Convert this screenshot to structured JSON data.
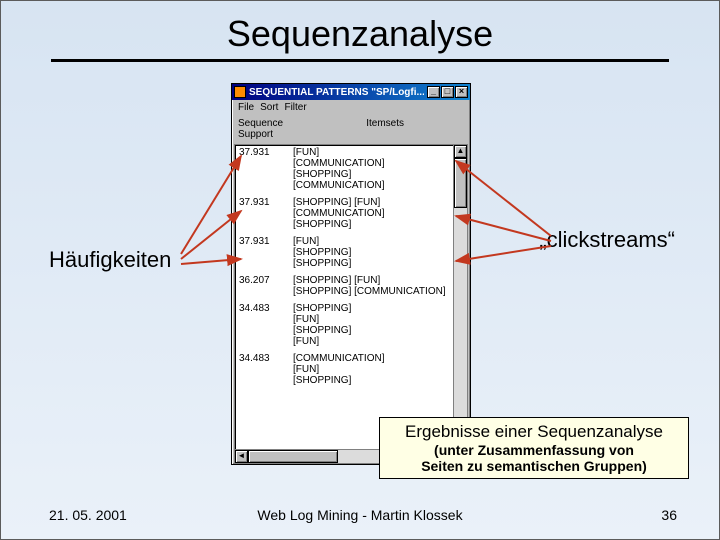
{
  "slide": {
    "title": "Sequenzanalyse",
    "annot_left": "Häufigkeiten",
    "annot_right": "„clickstreams“",
    "callout_line1": "Ergebnisse einer Sequenzanalyse",
    "callout_line2": "(unter Zusammenfassung von",
    "callout_line3": "Seiten zu semantischen Gruppen)",
    "footer_date": "21. 05. 2001",
    "footer_mid": "Web Log Mining - Martin Klossek",
    "footer_num": "36",
    "arrow_color": "#c3381f"
  },
  "app": {
    "title": "SEQUENTIAL PATTERNS        \"SP/Logfi...",
    "menu": [
      "File",
      "Sort",
      "Filter"
    ],
    "hdr_left_label": "Sequence",
    "hdr_left_sub": "Support",
    "hdr_right": "Itemsets",
    "rows": [
      {
        "freq": "37.931",
        "sets": [
          "[FUN]",
          "[COMMUNICATION]",
          "[SHOPPING]",
          "[COMMUNICATION]"
        ]
      },
      {
        "freq": "37.931",
        "sets": [
          "[SHOPPING] [FUN]",
          "[COMMUNICATION]",
          "[SHOPPING]"
        ]
      },
      {
        "freq": "37.931",
        "sets": [
          "[FUN]",
          "[SHOPPING]",
          "[SHOPPING]"
        ]
      },
      {
        "freq": "36.207",
        "sets": [
          "[SHOPPING] [FUN]",
          "[SHOPPING] [COMMUNICATION]"
        ]
      },
      {
        "freq": "34.483",
        "sets": [
          "[SHOPPING]",
          "[FUN]",
          "[SHOPPING]",
          "[FUN]"
        ]
      },
      {
        "freq": "34.483",
        "sets": [
          "[COMMUNICATION]",
          "[FUN]",
          "[SHOPPING]"
        ]
      }
    ]
  }
}
